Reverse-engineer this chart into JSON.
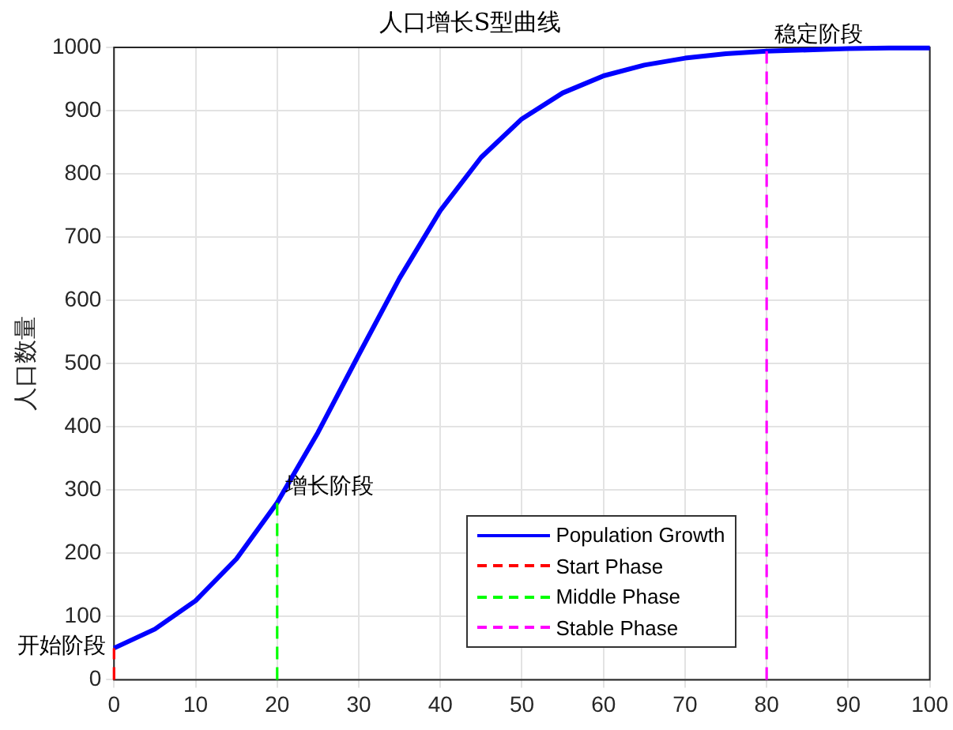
{
  "chart_data": {
    "type": "line",
    "title": "人口增长S型曲线",
    "ylabel": "人口数量",
    "xlim": [
      0,
      100
    ],
    "xticks": [
      0,
      10,
      20,
      30,
      40,
      50,
      60,
      70,
      80,
      90,
      100
    ],
    "ylim": [
      0,
      1000
    ],
    "yticks": [
      0,
      100,
      200,
      300,
      400,
      500,
      600,
      700,
      800,
      900,
      1000
    ],
    "grid": true,
    "legend": "bottom",
    "marker": "none",
    "series": [
      {
        "name": "Population Growth",
        "color": "#0000ff",
        "line_style": "solid",
        "x": [
          0,
          5,
          10,
          15,
          20,
          25,
          30,
          35,
          40,
          45,
          50,
          55,
          60,
          65,
          70,
          75,
          80,
          85,
          90,
          95,
          100
        ],
        "values": [
          50,
          80,
          125,
          191,
          280,
          391,
          514,
          635,
          742,
          826,
          887,
          928,
          955,
          972,
          983,
          990,
          994,
          996,
          998,
          999,
          999
        ]
      },
      {
        "name": "Start Phase",
        "color": "#ff0000",
        "line_style": "dashed",
        "x": [
          0,
          0
        ],
        "values": [
          0,
          50
        ]
      },
      {
        "name": "Middle Phase",
        "color": "#00ff00",
        "line_style": "dashed",
        "x": [
          20,
          20
        ],
        "values": [
          0,
          280
        ]
      },
      {
        "name": "Stable Phase",
        "color": "#ff00ff",
        "line_style": "dashed",
        "x": [
          80,
          80
        ],
        "values": [
          0,
          994
        ]
      }
    ],
    "annotations": [
      {
        "text": "开始阶段",
        "x": 0,
        "y": 50
      },
      {
        "text": "增长阶段",
        "x": 20,
        "y": 280
      },
      {
        "text": "稳定阶段",
        "x": 80,
        "y": 994
      }
    ]
  }
}
